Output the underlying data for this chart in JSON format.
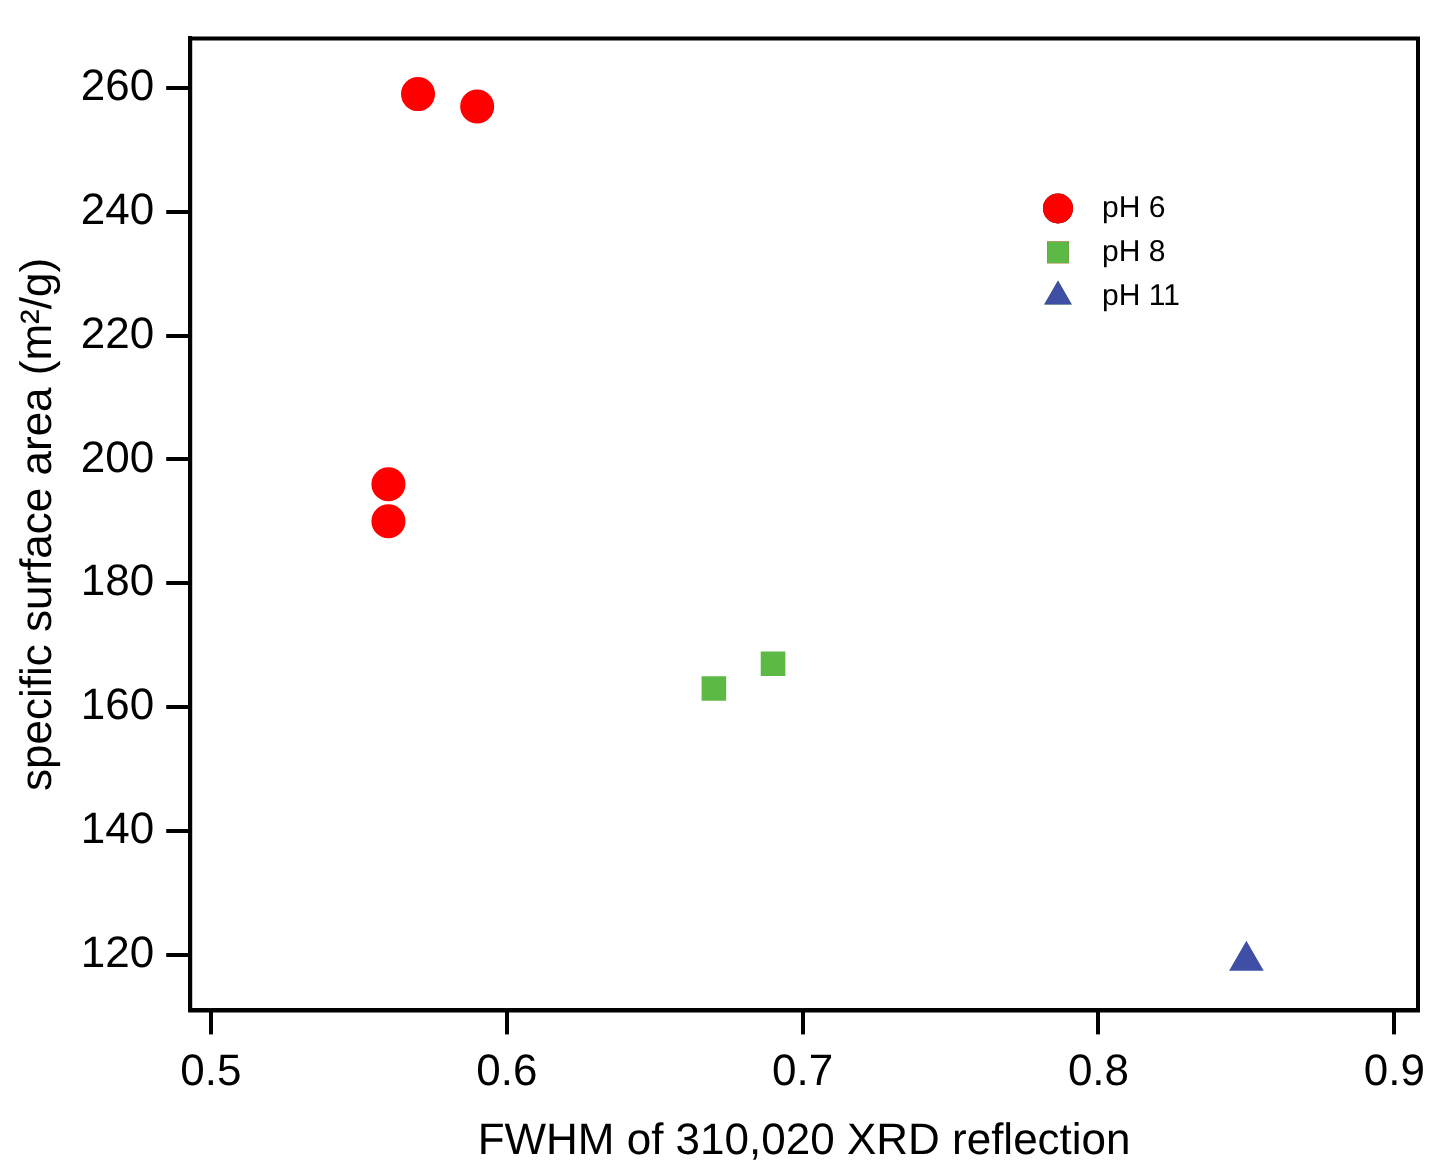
{
  "chart_data": {
    "type": "scatter",
    "xlabel": "FWHM of 310,020 XRD reflection",
    "ylabel": "specific surface area (m²/g)",
    "xlim": [
      0.493,
      0.908
    ],
    "xticks": [
      {
        "value": 0.5,
        "label": "0.5"
      },
      {
        "value": 0.6,
        "label": "0.6"
      },
      {
        "value": 0.7,
        "label": "0.7"
      },
      {
        "value": 0.8,
        "label": "0.8"
      },
      {
        "value": 0.9,
        "label": "0.9"
      }
    ],
    "ylim": [
      111,
      268
    ],
    "yticks": [
      120,
      140,
      160,
      180,
      200,
      220,
      240,
      260
    ],
    "grid": false,
    "legend": "top right",
    "series": [
      {
        "name": "pH 6",
        "color": "#ff0000",
        "marker": "circle",
        "x": [
          0.57,
          0.59,
          0.56,
          0.56
        ],
        "values": [
          259,
          257,
          196,
          190
        ]
      },
      {
        "name": "pH 8",
        "color": "#5cb946",
        "marker": "square",
        "x": [
          0.67,
          0.69
        ],
        "values": [
          163,
          167
        ]
      },
      {
        "name": "pH 11",
        "color": "#3f4fa5",
        "marker": "triangle",
        "x": [
          0.85
        ],
        "values": [
          119
        ]
      }
    ]
  }
}
